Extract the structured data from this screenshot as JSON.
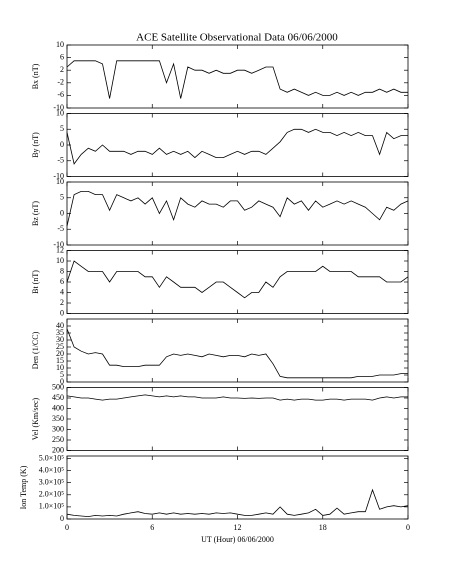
{
  "chart_data": [
    {
      "type": "line",
      "title": "ACE Satellite Observational Data   06/06/2000",
      "y_label": "Bx (nT)",
      "ylim": [
        -10,
        10
      ],
      "yticks": [
        10,
        6,
        2,
        -2,
        -6,
        -10
      ],
      "xlim": [
        0,
        24
      ],
      "x": [
        0,
        0.5,
        1,
        1.5,
        2,
        2.5,
        3,
        3.5,
        4,
        4.5,
        5,
        5.5,
        6,
        6.5,
        7,
        7.5,
        8,
        8.5,
        9,
        9.5,
        10,
        10.5,
        11,
        11.5,
        12,
        12.5,
        13,
        13.5,
        14,
        14.5,
        15,
        15.5,
        16,
        16.5,
        17,
        17.5,
        18,
        18.5,
        19,
        19.5,
        20,
        20.5,
        21,
        21.5,
        22,
        22.5,
        23,
        23.5,
        24
      ],
      "series": [
        {
          "color": "#000000",
          "values": [
            3,
            5,
            5,
            5,
            5,
            4,
            -7,
            5,
            5,
            5,
            5,
            5,
            5,
            5,
            -2,
            4,
            -7,
            3,
            2,
            2,
            1,
            2,
            1,
            1,
            2,
            2,
            1,
            2,
            3,
            3,
            -4,
            -5,
            -4,
            -5,
            -6,
            -5,
            -6,
            -6,
            -5,
            -6,
            -5,
            -6,
            -5,
            -5,
            -4,
            -5,
            -4,
            -5,
            -5
          ]
        }
      ]
    },
    {
      "type": "line",
      "y_label": "By (nT)",
      "ylim": [
        -10,
        10
      ],
      "yticks": [
        10,
        5,
        0,
        -5,
        -10
      ],
      "xlim": [
        0,
        24
      ],
      "x": [
        0,
        0.5,
        1,
        1.5,
        2,
        2.5,
        3,
        3.5,
        4,
        4.5,
        5,
        5.5,
        6,
        6.5,
        7,
        7.5,
        8,
        8.5,
        9,
        9.5,
        10,
        10.5,
        11,
        11.5,
        12,
        12.5,
        13,
        13.5,
        14,
        14.5,
        15,
        15.5,
        16,
        16.5,
        17,
        17.5,
        18,
        18.5,
        19,
        19.5,
        20,
        20.5,
        21,
        21.5,
        22,
        22.5,
        23,
        23.5,
        24
      ],
      "series": [
        {
          "color": "#000000",
          "values": [
            4,
            -6,
            -3,
            -1,
            -2,
            0,
            -2,
            -2,
            -2,
            -3,
            -2,
            -2,
            -3,
            -1,
            -3,
            -2,
            -3,
            -2,
            -4,
            -2,
            -3,
            -4,
            -4,
            -3,
            -2,
            -3,
            -2,
            -2,
            -3,
            -1,
            1,
            4,
            5,
            5,
            4,
            5,
            4,
            4,
            3,
            4,
            3,
            4,
            3,
            3,
            -3,
            4,
            2,
            3,
            3
          ]
        }
      ]
    },
    {
      "type": "line",
      "y_label": "Bz (nT)",
      "ylim": [
        -10,
        10
      ],
      "yticks": [
        10,
        5,
        0,
        -5,
        -10
      ],
      "xlim": [
        0,
        24
      ],
      "x": [
        0,
        0.5,
        1,
        1.5,
        2,
        2.5,
        3,
        3.5,
        4,
        4.5,
        5,
        5.5,
        6,
        6.5,
        7,
        7.5,
        8,
        8.5,
        9,
        9.5,
        10,
        10.5,
        11,
        11.5,
        12,
        12.5,
        13,
        13.5,
        14,
        14.5,
        15,
        15.5,
        16,
        16.5,
        17,
        17.5,
        18,
        18.5,
        19,
        19.5,
        20,
        20.5,
        21,
        21.5,
        22,
        22.5,
        23,
        23.5,
        24
      ],
      "series": [
        {
          "color": "#000000",
          "values": [
            -4,
            6,
            7,
            7,
            6,
            6,
            1,
            6,
            5,
            4,
            5,
            3,
            5,
            0,
            4,
            -2,
            5,
            3,
            2,
            4,
            3,
            3,
            2,
            4,
            4,
            1,
            2,
            4,
            3,
            2,
            -1,
            5,
            3,
            4,
            1,
            4,
            2,
            3,
            4,
            3,
            4,
            3,
            2,
            0,
            -2,
            2,
            1,
            3,
            4
          ]
        }
      ]
    },
    {
      "type": "line",
      "y_label": "Bt (nT)",
      "ylim": [
        0,
        12
      ],
      "yticks": [
        12,
        10,
        8,
        6,
        4,
        2,
        0
      ],
      "xlim": [
        0,
        24
      ],
      "x": [
        0,
        0.5,
        1,
        1.5,
        2,
        2.5,
        3,
        3.5,
        4,
        4.5,
        5,
        5.5,
        6,
        6.5,
        7,
        7.5,
        8,
        8.5,
        9,
        9.5,
        10,
        10.5,
        11,
        11.5,
        12,
        12.5,
        13,
        13.5,
        14,
        14.5,
        15,
        15.5,
        16,
        16.5,
        17,
        17.5,
        18,
        18.5,
        19,
        19.5,
        20,
        20.5,
        21,
        21.5,
        22,
        22.5,
        23,
        23.5,
        24
      ],
      "series": [
        {
          "color": "#000000",
          "values": [
            6,
            10,
            9,
            8,
            8,
            8,
            6,
            8,
            8,
            8,
            8,
            7,
            7,
            5,
            7,
            6,
            5,
            5,
            5,
            4,
            5,
            6,
            6,
            5,
            4,
            3,
            4,
            4,
            6,
            5,
            7,
            8,
            8,
            8,
            8,
            8,
            9,
            8,
            8,
            8,
            8,
            7,
            7,
            7,
            7,
            6,
            6,
            6,
            7
          ]
        }
      ]
    },
    {
      "type": "line",
      "y_label": "Den (1/CC)",
      "ylim": [
        0,
        45
      ],
      "yticks": [
        40,
        35,
        30,
        25,
        20,
        15,
        10,
        5,
        0
      ],
      "xlim": [
        0,
        24
      ],
      "x": [
        0,
        0.5,
        1,
        1.5,
        2,
        2.5,
        3,
        3.5,
        4,
        4.5,
        5,
        5.5,
        6,
        6.5,
        7,
        7.5,
        8,
        8.5,
        9,
        9.5,
        10,
        10.5,
        11,
        11.5,
        12,
        12.5,
        13,
        13.5,
        14,
        14.5,
        15,
        15.5,
        16,
        16.5,
        17,
        17.5,
        18,
        18.5,
        19,
        19.5,
        20,
        20.5,
        21,
        21.5,
        22,
        22.5,
        23,
        23.5,
        24
      ],
      "series": [
        {
          "color": "#000000",
          "values": [
            38,
            25,
            22,
            20,
            21,
            20,
            12,
            12,
            11,
            11,
            11,
            12,
            12,
            12,
            18,
            20,
            19,
            20,
            19,
            18,
            20,
            19,
            18,
            19,
            19,
            18,
            20,
            19,
            20,
            13,
            4,
            3,
            3,
            3,
            3,
            3,
            3,
            3,
            3,
            3,
            3,
            4,
            4,
            4,
            5,
            5,
            5,
            6,
            6
          ]
        }
      ]
    },
    {
      "type": "line",
      "y_label": "Vel (Km/sec)",
      "ylim": [
        200,
        500
      ],
      "yticks": [
        500,
        450,
        400,
        350,
        300,
        250,
        200
      ],
      "xlim": [
        0,
        24
      ],
      "x": [
        0,
        0.5,
        1,
        1.5,
        2,
        2.5,
        3,
        3.5,
        4,
        4.5,
        5,
        5.5,
        6,
        6.5,
        7,
        7.5,
        8,
        8.5,
        9,
        9.5,
        10,
        10.5,
        11,
        11.5,
        12,
        12.5,
        13,
        13.5,
        14,
        14.5,
        15,
        15.5,
        16,
        16.5,
        17,
        17.5,
        18,
        18.5,
        19,
        19.5,
        20,
        20.5,
        21,
        21.5,
        22,
        22.5,
        23,
        23.5,
        24
      ],
      "series": [
        {
          "color": "#000000",
          "values": [
            460,
            455,
            450,
            450,
            445,
            440,
            445,
            445,
            450,
            455,
            460,
            465,
            460,
            455,
            460,
            455,
            460,
            455,
            455,
            450,
            450,
            450,
            455,
            450,
            450,
            448,
            450,
            448,
            450,
            450,
            440,
            445,
            440,
            445,
            445,
            440,
            440,
            445,
            445,
            440,
            445,
            445,
            445,
            440,
            450,
            455,
            450,
            455,
            455
          ]
        }
      ]
    },
    {
      "type": "line",
      "y_label": "Ion Temp (K)",
      "ylim": [
        0,
        520000
      ],
      "yticks": [
        {
          "value": 500000,
          "label": "5.0×10⁵"
        },
        {
          "value": 400000,
          "label": "4.0×10⁵"
        },
        {
          "value": 300000,
          "label": "3.0×10⁵"
        },
        {
          "value": 200000,
          "label": "2.0×10⁵"
        },
        {
          "value": 100000,
          "label": "1.0×10⁵"
        },
        0
      ],
      "xlim": [
        0,
        24
      ],
      "xticks": [
        0,
        6,
        12,
        18,
        {
          "value": 24,
          "label": "0"
        }
      ],
      "x_label": "UT (Hour)   06/06/2000",
      "x": [
        0,
        0.5,
        1,
        1.5,
        2,
        2.5,
        3,
        3.5,
        4,
        4.5,
        5,
        5.5,
        6,
        6.5,
        7,
        7.5,
        8,
        8.5,
        9,
        9.5,
        10,
        10.5,
        11,
        11.5,
        12,
        12.5,
        13,
        13.5,
        14,
        14.5,
        15,
        15.5,
        16,
        16.5,
        17,
        17.5,
        18,
        18.5,
        19,
        19.5,
        20,
        20.5,
        21,
        21.5,
        22,
        22.5,
        23,
        23.5,
        24
      ],
      "series": [
        {
          "color": "#000000",
          "values": [
            40000,
            30000,
            25000,
            20000,
            30000,
            25000,
            30000,
            25000,
            40000,
            50000,
            60000,
            45000,
            40000,
            50000,
            40000,
            50000,
            40000,
            45000,
            40000,
            45000,
            40000,
            50000,
            45000,
            50000,
            40000,
            30000,
            30000,
            40000,
            50000,
            40000,
            100000,
            40000,
            30000,
            40000,
            50000,
            80000,
            30000,
            40000,
            90000,
            40000,
            50000,
            60000,
            60000,
            240000,
            80000,
            100000,
            110000,
            100000,
            110000
          ]
        }
      ]
    }
  ]
}
